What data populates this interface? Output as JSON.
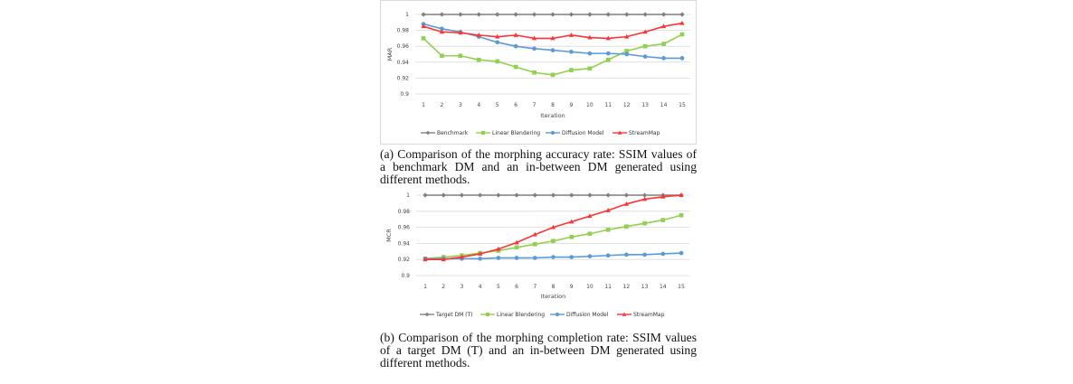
{
  "figures": [
    {
      "caption": "(a) Comparison of the morphing accuracy rate: SSIM values of a benchmark DM and an in-between DM generated using different methods.",
      "chart_data": {
        "type": "line",
        "title": "",
        "xlabel": "Iteration",
        "ylabel": "MAR",
        "x": [
          1,
          2,
          3,
          4,
          5,
          6,
          7,
          8,
          9,
          10,
          11,
          12,
          13,
          14,
          15
        ],
        "x_tick_labels": [
          "1",
          "2",
          "3",
          "4",
          "5",
          "6",
          "7",
          "8",
          "9",
          "10",
          "11",
          "12",
          "13",
          "14",
          "15"
        ],
        "ylim": [
          0.9,
          1.0
        ],
        "y_ticks": [
          0.9,
          0.92,
          0.94,
          0.96,
          0.98,
          1
        ],
        "y_tick_labels": [
          "0.9",
          "0.92",
          "0.94",
          "0.96",
          "0.98",
          "1"
        ],
        "grid": true,
        "legend_position": "bottom",
        "series": [
          {
            "name": "Benchmark",
            "color": "#7f7f7f",
            "marker": "diamond",
            "values": [
              1,
              1,
              1,
              1,
              1,
              1,
              1,
              1,
              1,
              1,
              1,
              1,
              1,
              1,
              1
            ]
          },
          {
            "name": "Linear Blendering",
            "color": "#92d050",
            "marker": "square",
            "values": [
              0.97,
              0.948,
              0.948,
              0.943,
              0.941,
              0.934,
              0.927,
              0.924,
              0.93,
              0.932,
              0.943,
              0.954,
              0.96,
              0.963,
              0.975
            ]
          },
          {
            "name": "Diffusion Model",
            "color": "#5b9bd5",
            "marker": "circle",
            "values": [
              0.988,
              0.982,
              0.978,
              0.972,
              0.965,
              0.96,
              0.957,
              0.955,
              0.953,
              0.951,
              0.951,
              0.95,
              0.947,
              0.945,
              0.945
            ]
          },
          {
            "name": "StreamMap",
            "color": "#ff3333",
            "marker": "triangle",
            "values": [
              0.985,
              0.978,
              0.977,
              0.974,
              0.972,
              0.974,
              0.97,
              0.97,
              0.974,
              0.971,
              0.97,
              0.972,
              0.978,
              0.985,
              0.989
            ]
          }
        ]
      }
    },
    {
      "caption": "(b) Comparison of the morphing completion rate: SSIM values of a target DM (T) and an in-between DM generated using different methods.",
      "chart_data": {
        "type": "line",
        "title": "",
        "xlabel": "Iteration",
        "ylabel": "MCR",
        "x": [
          1,
          2,
          3,
          4,
          5,
          6,
          7,
          8,
          9,
          10,
          11,
          12,
          13,
          14,
          15
        ],
        "x_tick_labels": [
          "1",
          "2",
          "3",
          "4",
          "5",
          "6",
          "7",
          "8",
          "9",
          "10",
          "11",
          "12",
          "13",
          "14",
          "15"
        ],
        "ylim": [
          0.9,
          1.0
        ],
        "y_ticks": [
          0.9,
          0.92,
          0.94,
          0.96,
          0.98,
          1
        ],
        "y_tick_labels": [
          "0.9",
          "0.92",
          "0.94",
          "0.96",
          "0.98",
          "1"
        ],
        "grid": true,
        "legend_position": "bottom",
        "series": [
          {
            "name": "Target DM (T)",
            "color": "#7f7f7f",
            "marker": "diamond",
            "values": [
              1,
              1,
              1,
              1,
              1,
              1,
              1,
              1,
              1,
              1,
              1,
              1,
              1,
              1,
              1
            ]
          },
          {
            "name": "Linear Blendering",
            "color": "#92d050",
            "marker": "square",
            "values": [
              0.921,
              0.923,
              0.925,
              0.928,
              0.931,
              0.935,
              0.939,
              0.943,
              0.948,
              0.952,
              0.957,
              0.961,
              0.965,
              0.969,
              0.975
            ]
          },
          {
            "name": "Diffusion Model",
            "color": "#5b9bd5",
            "marker": "circle",
            "values": [
              0.921,
              0.921,
              0.921,
              0.921,
              0.922,
              0.922,
              0.922,
              0.923,
              0.923,
              0.924,
              0.925,
              0.926,
              0.926,
              0.927,
              0.928
            ]
          },
          {
            "name": "StreamMap",
            "color": "#ff3333",
            "marker": "triangle",
            "values": [
              0.92,
              0.92,
              0.923,
              0.927,
              0.933,
              0.941,
              0.951,
              0.96,
              0.967,
              0.974,
              0.981,
              0.989,
              0.995,
              0.998,
              1.0
            ]
          }
        ]
      }
    }
  ]
}
